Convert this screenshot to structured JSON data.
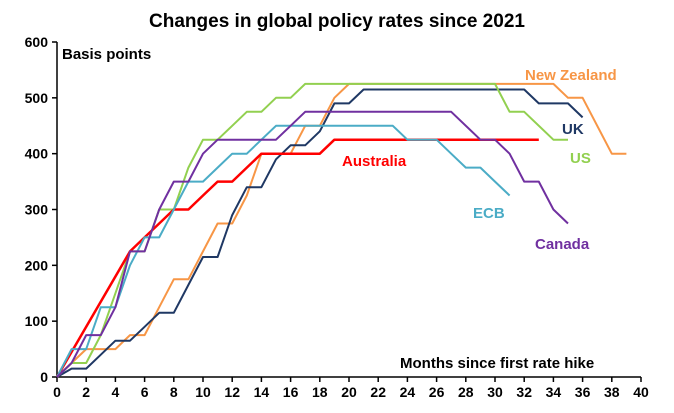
{
  "chart_data": {
    "type": "line",
    "title": "Changes in global policy rates since 2021",
    "ylabel": "Basis points",
    "xlabel": "Months since first rate hike",
    "xlim": [
      0,
      40
    ],
    "ylim": [
      0,
      600
    ],
    "xticks": [
      0,
      2,
      4,
      6,
      8,
      10,
      12,
      14,
      16,
      18,
      20,
      22,
      24,
      26,
      28,
      30,
      32,
      34,
      36,
      38,
      40
    ],
    "yticks": [
      0,
      100,
      200,
      300,
      400,
      500,
      600
    ],
    "grid": false,
    "legend": "inline labels",
    "series": [
      {
        "name": "New Zealand",
        "color": "#F79646",
        "x": [
          0,
          1,
          2,
          3,
          4,
          5,
          6,
          7,
          8,
          9,
          10,
          11,
          12,
          13,
          14,
          15,
          16,
          17,
          18,
          19,
          20,
          34,
          35,
          36,
          38,
          39
        ],
        "y": [
          0,
          25,
          50,
          50,
          50,
          75,
          75,
          125,
          175,
          175,
          225,
          275,
          275,
          325,
          400,
          400,
          400,
          450,
          450,
          500,
          525,
          525,
          500,
          500,
          400,
          400
        ]
      },
      {
        "name": "UK",
        "color": "#1F3864",
        "x": [
          0,
          1,
          2,
          3,
          4,
          5,
          6,
          7,
          8,
          9,
          10,
          11,
          12,
          13,
          14,
          15,
          16,
          17,
          18,
          19,
          20,
          21,
          32,
          33,
          35,
          36
        ],
        "y": [
          0,
          15,
          15,
          40,
          65,
          65,
          90,
          115,
          115,
          165,
          215,
          215,
          290,
          340,
          340,
          390,
          415,
          415,
          440,
          490,
          490,
          515,
          515,
          490,
          490,
          465
        ]
      },
      {
        "name": "US",
        "color": "#92D050",
        "x": [
          0,
          1,
          2,
          3,
          4,
          5,
          6,
          7,
          8,
          9,
          10,
          11,
          12,
          13,
          14,
          15,
          16,
          17,
          30,
          31,
          32,
          34,
          35
        ],
        "y": [
          0,
          25,
          25,
          75,
          150,
          225,
          225,
          300,
          300,
          375,
          425,
          425,
          450,
          475,
          475,
          500,
          500,
          525,
          525,
          475,
          475,
          425,
          425
        ]
      },
      {
        "name": "Australia",
        "color": "#FF0000",
        "x": [
          0,
          5,
          6,
          7,
          8,
          9,
          10,
          11,
          12,
          13,
          14,
          18,
          19,
          33
        ],
        "y": [
          0,
          225,
          250,
          275,
          300,
          300,
          325,
          350,
          350,
          375,
          400,
          400,
          425,
          425
        ]
      },
      {
        "name": "ECB",
        "color": "#4BACC6",
        "x": [
          0,
          1,
          2,
          3,
          4,
          5,
          6,
          7,
          8,
          9,
          10,
          11,
          12,
          13,
          14,
          15,
          23,
          24,
          26,
          27,
          28,
          29,
          30,
          31
        ],
        "y": [
          0,
          50,
          50,
          125,
          125,
          200,
          250,
          250,
          300,
          350,
          350,
          375,
          400,
          400,
          425,
          450,
          450,
          425,
          425,
          400,
          375,
          375,
          350,
          325
        ]
      },
      {
        "name": "Canada",
        "color": "#7030A0",
        "x": [
          0,
          1,
          2,
          3,
          4,
          5,
          6,
          7,
          8,
          9,
          10,
          11,
          15,
          16,
          17,
          27,
          29,
          30,
          31,
          32,
          33,
          34,
          35
        ],
        "y": [
          0,
          25,
          75,
          75,
          125,
          225,
          225,
          300,
          350,
          350,
          400,
          425,
          425,
          450,
          475,
          475,
          425,
          425,
          400,
          350,
          350,
          300,
          275
        ]
      }
    ]
  }
}
